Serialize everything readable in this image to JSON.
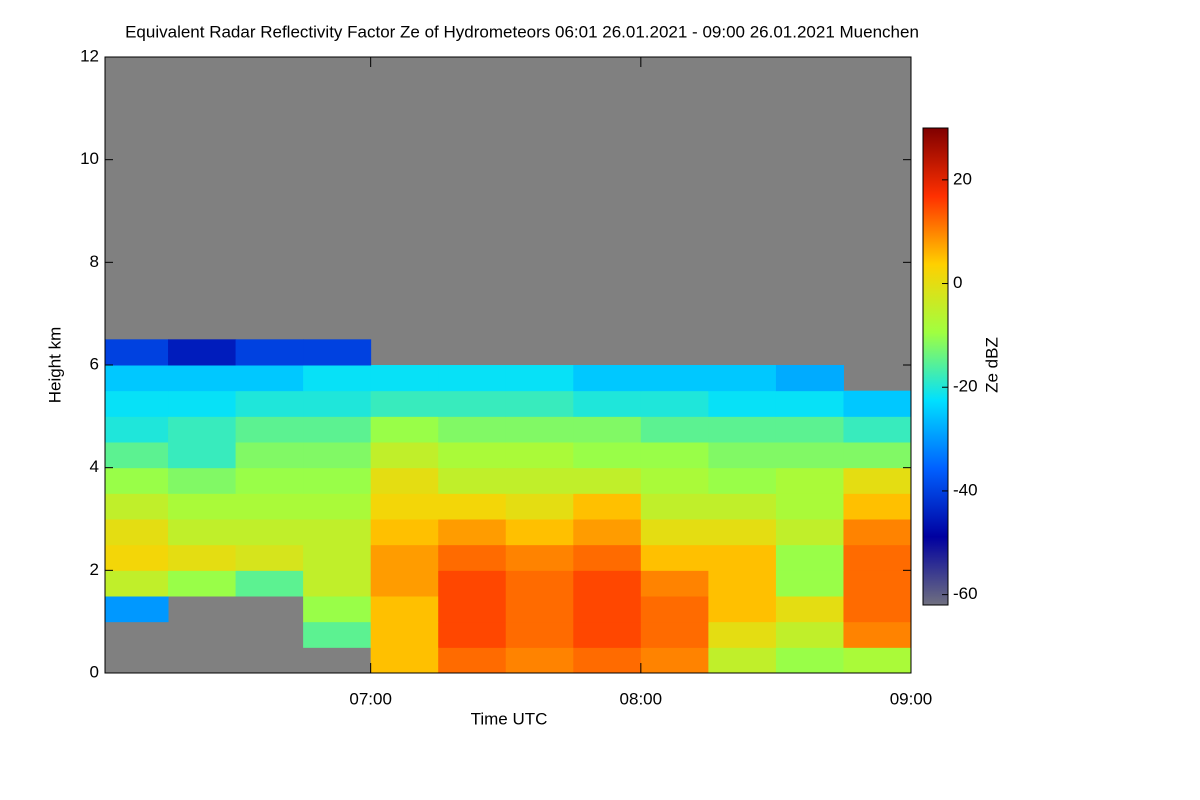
{
  "chart_data": {
    "type": "heatmap",
    "title": "Equivalent Radar Reflectivity Factor Ze of Hydrometeors   06:01 26.01.2021 - 09:00 26.01.2021 Muenchen",
    "x_label": "Time UTC",
    "y_label": "Height km",
    "colorbar_label": "Ze dBZ",
    "background": "#808080",
    "colors": [
      "#707080",
      "#0000a0",
      "#0060ff",
      "#00e0ff",
      "#a0ff40",
      "#ffd000",
      "#ff3000",
      "#800000"
    ],
    "xlim": [
      "06:01",
      "09:00"
    ],
    "xticks": [
      "07:00",
      "08:00",
      "09:00"
    ],
    "ylim": [
      0,
      12
    ],
    "yticks": [
      0,
      2,
      4,
      6,
      8,
      10,
      12
    ],
    "clim": [
      -62,
      30
    ],
    "cticks": [
      -60,
      -40,
      -20,
      0,
      20
    ],
    "x_bins": [
      "06:00",
      "06:15",
      "06:30",
      "06:45",
      "07:00",
      "07:15",
      "07:30",
      "07:45",
      "08:00",
      "08:15",
      "08:30",
      "08:45",
      "09:00"
    ],
    "y_bins": [
      0,
      0.5,
      1,
      1.5,
      2,
      2.5,
      3,
      3.5,
      4,
      4.5,
      5,
      5.5,
      6,
      6.5
    ],
    "z": [
      [
        null,
        null,
        null,
        null,
        5,
        12,
        10,
        12,
        10,
        -5,
        -10,
        -8
      ],
      [
        null,
        null,
        null,
        -15,
        5,
        15,
        12,
        15,
        12,
        0,
        -5,
        10
      ],
      [
        -30,
        null,
        null,
        -10,
        5,
        15,
        12,
        15,
        12,
        5,
        0,
        12
      ],
      [
        -5,
        -10,
        -15,
        -5,
        8,
        15,
        12,
        15,
        10,
        5,
        -10,
        12
      ],
      [
        2,
        0,
        -2,
        -5,
        8,
        12,
        10,
        12,
        5,
        5,
        -10,
        12
      ],
      [
        0,
        -5,
        -5,
        -5,
        5,
        8,
        5,
        8,
        0,
        0,
        -5,
        10
      ],
      [
        -5,
        -8,
        -8,
        -8,
        2,
        2,
        0,
        5,
        -5,
        -5,
        -8,
        5
      ],
      [
        -10,
        -12,
        -10,
        -10,
        0,
        -5,
        -5,
        -5,
        -8,
        -10,
        -8,
        0
      ],
      [
        -15,
        -18,
        -12,
        -12,
        -5,
        -8,
        -8,
        -10,
        -10,
        -12,
        -12,
        -12
      ],
      [
        -20,
        -18,
        -15,
        -15,
        -10,
        -12,
        -12,
        -12,
        -15,
        -15,
        -15,
        -18
      ],
      [
        -22,
        -22,
        -20,
        -20,
        -18,
        -18,
        -18,
        -20,
        -20,
        -22,
        -22,
        -25
      ],
      [
        -25,
        -25,
        -25,
        -22,
        -22,
        -22,
        -22,
        -25,
        -25,
        -25,
        -28,
        null
      ],
      [
        -40,
        -45,
        -40,
        -40,
        null,
        null,
        null,
        null,
        null,
        null,
        null,
        null
      ]
    ]
  }
}
